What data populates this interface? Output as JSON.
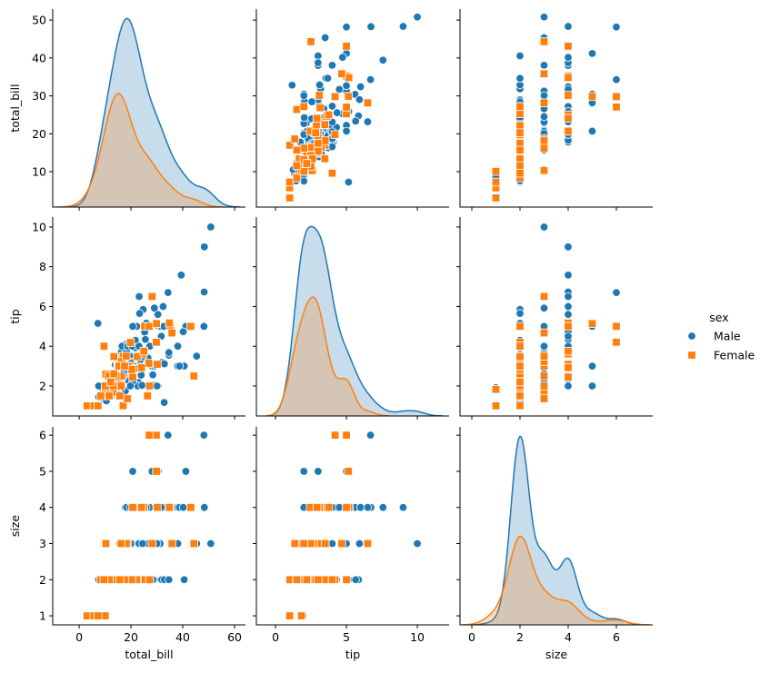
{
  "chart_data": {
    "type": "scatter",
    "kind": "pairplot",
    "diagonal": "kde",
    "hue": "sex",
    "grid": false,
    "variables": [
      "total_bill",
      "tip",
      "size"
    ],
    "axes": [
      {
        "label": "total_bill",
        "xlim": [
          -10.2,
          64.2
        ],
        "ylim": [
          0.66,
          52.9
        ],
        "xticks": [
          0,
          20,
          40,
          60
        ],
        "yticks": [
          10,
          20,
          30,
          40,
          50
        ],
        "xtick_labels": [
          "0",
          "20",
          "40",
          "60"
        ],
        "ytick_labels": [
          "10",
          "20",
          "30",
          "40",
          "50"
        ]
      },
      {
        "label": "tip",
        "xlim": [
          -1.35,
          12.24
        ],
        "ylim": [
          0.49,
          10.5
        ],
        "xticks": [
          0,
          5,
          10
        ],
        "yticks": [
          2,
          4,
          6,
          8,
          10
        ],
        "xtick_labels": [
          "0",
          "5",
          "10"
        ],
        "ytick_labels": [
          "2",
          "4",
          "6",
          "8",
          "10"
        ]
      },
      {
        "label": "size",
        "xlim": [
          -0.49,
          7.51
        ],
        "ylim": [
          0.75,
          6.23
        ],
        "xticks": [
          0,
          2,
          4,
          6
        ],
        "yticks": [
          1,
          2,
          3,
          4,
          5,
          6
        ],
        "xtick_labels": [
          "0",
          "2",
          "4",
          "6"
        ],
        "ytick_labels": [
          "1",
          "2",
          "3",
          "4",
          "5",
          "6"
        ]
      }
    ],
    "legend": {
      "title": "sex",
      "placement": "right",
      "entries": [
        {
          "name": "Male",
          "color": "#1f77b4",
          "marker": "circle"
        },
        {
          "name": "Female",
          "color": "#ff7f0e",
          "marker": "square"
        }
      ]
    },
    "series": [
      {
        "name": "Male",
        "color": "#1f77b4",
        "marker": "circle",
        "points": [
          [
            10.34,
            1.66,
            3
          ],
          [
            21.01,
            3.5,
            3
          ],
          [
            23.68,
            3.31,
            2
          ],
          [
            25.29,
            4.71,
            4
          ],
          [
            8.77,
            2.0,
            2
          ],
          [
            26.88,
            3.12,
            4
          ],
          [
            15.04,
            1.96,
            2
          ],
          [
            14.78,
            3.23,
            2
          ],
          [
            10.27,
            1.71,
            2
          ],
          [
            15.42,
            1.57,
            2
          ],
          [
            18.43,
            3.0,
            4
          ],
          [
            21.58,
            3.92,
            2
          ],
          [
            16.29,
            3.71,
            3
          ],
          [
            20.65,
            3.35,
            3
          ],
          [
            17.92,
            4.08,
            2
          ],
          [
            39.42,
            7.58,
            4
          ],
          [
            19.82,
            3.18,
            2
          ],
          [
            17.81,
            2.34,
            4
          ],
          [
            13.37,
            2.0,
            2
          ],
          [
            12.69,
            2.0,
            2
          ],
          [
            21.7,
            4.3,
            2
          ],
          [
            9.55,
            1.45,
            2
          ],
          [
            18.35,
            2.5,
            4
          ],
          [
            17.78,
            3.27,
            2
          ],
          [
            24.06,
            3.6,
            3
          ],
          [
            16.31,
            2.0,
            3
          ],
          [
            18.69,
            2.31,
            3
          ],
          [
            31.27,
            5.0,
            3
          ],
          [
            16.04,
            2.24,
            3
          ],
          [
            17.46,
            2.54,
            2
          ],
          [
            13.94,
            3.06,
            2
          ],
          [
            9.68,
            1.32,
            2
          ],
          [
            30.4,
            5.6,
            4
          ],
          [
            18.29,
            3.0,
            2
          ],
          [
            22.23,
            5.0,
            2
          ],
          [
            32.4,
            6.0,
            4
          ],
          [
            28.55,
            2.05,
            3
          ],
          [
            18.04,
            3.0,
            2
          ],
          [
            12.54,
            2.5,
            2
          ],
          [
            9.94,
            1.56,
            2
          ],
          [
            25.56,
            4.34,
            4
          ],
          [
            19.49,
            3.51,
            2
          ],
          [
            38.01,
            3.0,
            4
          ],
          [
            11.24,
            1.76,
            2
          ],
          [
            48.27,
            6.73,
            4
          ],
          [
            20.29,
            3.21,
            2
          ],
          [
            13.81,
            2.0,
            2
          ],
          [
            11.02,
            1.98,
            2
          ],
          [
            18.29,
            3.76,
            4
          ],
          [
            17.59,
            2.64,
            3
          ],
          [
            20.08,
            3.15,
            3
          ],
          [
            20.23,
            2.01,
            2
          ],
          [
            15.01,
            2.09,
            2
          ],
          [
            12.02,
            1.97,
            2
          ],
          [
            10.51,
            1.25,
            2
          ],
          [
            17.92,
            3.08,
            2
          ],
          [
            27.2,
            4.0,
            4
          ],
          [
            22.76,
            3.0,
            2
          ],
          [
            17.29,
            2.71,
            2
          ],
          [
            19.44,
            3.0,
            2
          ],
          [
            16.66,
            3.4,
            2
          ],
          [
            32.68,
            5.0,
            2
          ],
          [
            15.98,
            2.03,
            2
          ],
          [
            13.03,
            2.0,
            2
          ],
          [
            18.28,
            4.0,
            2
          ],
          [
            24.71,
            5.85,
            2
          ],
          [
            21.16,
            3.0,
            2
          ],
          [
            50.81,
            10.0,
            3
          ],
          [
            48.33,
            9.0,
            4
          ],
          [
            7.25,
            5.15,
            2
          ],
          [
            40.55,
            3.0,
            2
          ],
          [
            45.35,
            3.5,
            3
          ],
          [
            48.17,
            5.0,
            6
          ],
          [
            34.3,
            6.7,
            6
          ],
          [
            41.19,
            5.0,
            5
          ],
          [
            28.15,
            3.0,
            5
          ],
          [
            30.46,
            2.0,
            5
          ],
          [
            20.69,
            5.0,
            5
          ],
          [
            8.58,
            1.92,
            1
          ],
          [
            32.83,
            1.17,
            2
          ],
          [
            25.89,
            5.16,
            4
          ],
          [
            31.85,
            3.18,
            2
          ],
          [
            28.97,
            3.0,
            2
          ],
          [
            22.82,
            2.18,
            3
          ],
          [
            7.51,
            2.0,
            2
          ],
          [
            38.07,
            4.0,
            3
          ],
          [
            29.03,
            5.92,
            3
          ],
          [
            22.67,
            2.0,
            2
          ],
          [
            17.82,
            1.75,
            2
          ],
          [
            26.59,
            3.41,
            3
          ],
          [
            38.73,
            3.0,
            4
          ],
          [
            24.27,
            2.03,
            2
          ],
          [
            30.06,
            2.0,
            3
          ],
          [
            28.44,
            2.56,
            2
          ],
          [
            15.48,
            2.02,
            2
          ],
          [
            16.58,
            4.0,
            2
          ],
          [
            7.56,
            1.44,
            2
          ],
          [
            13.51,
            2.0,
            2
          ],
          [
            18.71,
            4.0,
            3
          ],
          [
            20.53,
            4.0,
            4
          ],
          [
            40.17,
            4.73,
            4
          ],
          [
            27.28,
            4.0,
            2
          ],
          [
            12.03,
            1.5,
            2
          ],
          [
            21.01,
            3.0,
            2
          ],
          [
            12.46,
            1.5,
            2
          ],
          [
            32.9,
            3.11,
            2
          ],
          [
            23.33,
            5.65,
            2
          ],
          [
            23.95,
            2.55,
            2
          ],
          [
            34.63,
            3.55,
            2
          ],
          [
            34.65,
            3.68,
            4
          ],
          [
            23.1,
            4.0,
            3
          ],
          [
            24.52,
            3.48,
            3
          ],
          [
            20.76,
            2.24,
            2
          ],
          [
            31.71,
            4.5,
            4
          ],
          [
            16.0,
            2.0,
            2
          ],
          [
            29.93,
            5.07,
            4
          ],
          [
            14.07,
            2.5,
            2
          ],
          [
            15.69,
            3.0,
            3
          ],
          [
            19.77,
            2.0,
            4
          ],
          [
            23.17,
            6.5,
            4
          ]
        ]
      },
      {
        "name": "Female",
        "color": "#ff7f0e",
        "marker": "square",
        "points": [
          [
            16.99,
            1.01,
            2
          ],
          [
            24.59,
            3.61,
            4
          ],
          [
            35.26,
            5.0,
            4
          ],
          [
            14.83,
            3.02,
            2
          ],
          [
            10.33,
            1.67,
            3
          ],
          [
            16.97,
            3.5,
            3
          ],
          [
            20.29,
            2.75,
            2
          ],
          [
            15.77,
            2.23,
            2
          ],
          [
            19.65,
            3.0,
            2
          ],
          [
            15.06,
            3.0,
            2
          ],
          [
            20.69,
            2.45,
            4
          ],
          [
            16.93,
            3.07,
            3
          ],
          [
            10.29,
            2.6,
            2
          ],
          [
            34.81,
            5.2,
            4
          ],
          [
            26.41,
            1.5,
            2
          ],
          [
            16.45,
            2.47,
            2
          ],
          [
            3.07,
            1.0,
            1
          ],
          [
            17.07,
            3.0,
            3
          ],
          [
            26.86,
            3.14,
            2
          ],
          [
            25.28,
            5.0,
            2
          ],
          [
            14.73,
            2.2,
            2
          ],
          [
            10.07,
            1.83,
            1
          ],
          [
            34.83,
            5.17,
            4
          ],
          [
            44.3,
            2.5,
            3
          ],
          [
            43.11,
            5.0,
            4
          ],
          [
            29.8,
            4.2,
            6
          ],
          [
            27.05,
            5.0,
            6
          ],
          [
            29.85,
            5.14,
            5
          ],
          [
            5.75,
            1.0,
            1
          ],
          [
            7.25,
            1.0,
            1
          ],
          [
            35.83,
            4.67,
            3
          ],
          [
            27.18,
            2.0,
            2
          ],
          [
            18.78,
            3.0,
            2
          ],
          [
            12.76,
            2.23,
            2
          ],
          [
            13.0,
            2.0,
            2
          ],
          [
            12.74,
            2.01,
            2
          ],
          [
            16.4,
            2.5,
            2
          ],
          [
            16.47,
            3.23,
            3
          ],
          [
            11.35,
            2.5,
            2
          ],
          [
            15.38,
            3.0,
            2
          ],
          [
            28.17,
            6.5,
            3
          ],
          [
            30.14,
            3.09,
            4
          ],
          [
            22.42,
            3.48,
            2
          ],
          [
            8.35,
            1.5,
            2
          ],
          [
            18.64,
            1.36,
            3
          ],
          [
            11.87,
            1.63,
            2
          ],
          [
            13.42,
            1.68,
            2
          ],
          [
            19.81,
            4.19,
            2
          ],
          [
            14.26,
            2.5,
            2
          ],
          [
            18.15,
            3.5,
            3
          ],
          [
            25.0,
            3.75,
            4
          ],
          [
            13.39,
            2.61,
            2
          ],
          [
            16.21,
            2.0,
            3
          ],
          [
            13.13,
            2.0,
            2
          ],
          [
            10.09,
            2.0,
            2
          ],
          [
            22.12,
            2.88,
            2
          ],
          [
            20.27,
            2.83,
            2
          ],
          [
            12.16,
            2.2,
            2
          ],
          [
            13.42,
            3.48,
            2
          ],
          [
            17.51,
            3.0,
            2
          ],
          [
            24.08,
            2.92,
            4
          ],
          [
            15.69,
            1.5,
            2
          ],
          [
            11.59,
            1.5,
            2
          ],
          [
            9.6,
            4.0,
            2
          ]
        ]
      }
    ]
  }
}
